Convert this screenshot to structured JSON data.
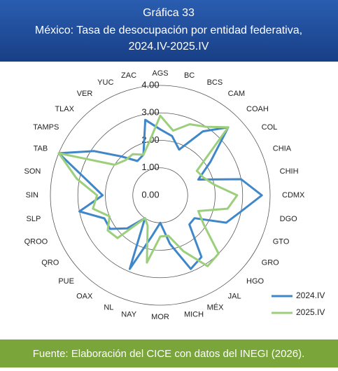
{
  "chart_data": {
    "type": "radar",
    "title": "Gráfica 33",
    "subtitle": [
      "México: Tasa de desocupación por entidad federativa,",
      "2024.IV-2025.IV"
    ],
    "source": "Fuente: Elaboración del CICE con datos del INEGI (2026).",
    "categories": [
      "AGS",
      "BC",
      "BCS",
      "CAM",
      "COAH",
      "COL",
      "CHIA",
      "CHIH",
      "CDMX",
      "DGO",
      "GTO",
      "GRO",
      "HGO",
      "JAL",
      "MÉX",
      "MICH",
      "MOR",
      "NAY",
      "NL",
      "OAX",
      "PUE",
      "QRO",
      "QROO",
      "SLP",
      "SIN",
      "SON",
      "TAB",
      "TAMPS",
      "TLAX",
      "VER",
      "YUC",
      "ZAC"
    ],
    "series": [
      {
        "name": "2024.IV",
        "color": "#3f87c9",
        "values": [
          2.4,
          2.2,
          1.8,
          2.8,
          3.5,
          2.2,
          1.5,
          3.0,
          3.7,
          3.0,
          2.6,
          1.5,
          1.5,
          2.7,
          2.9,
          1.8,
          1.0,
          1.5,
          2.9,
          1.0,
          1.7,
          2.2,
          2.2,
          3.0,
          2.1,
          2.7,
          4.0,
          2.9,
          2.0,
          1.5,
          1.6,
          2.8
        ]
      },
      {
        "name": "2025.IV",
        "color": "#9ccf7c",
        "values": [
          2.9,
          2.4,
          2.8,
          3.0,
          3.5,
          1.6,
          1.7,
          2.0,
          2.8,
          2.5,
          1.5,
          1.9,
          3.0,
          3.1,
          2.2,
          1.5,
          1.5,
          2.5,
          1.2,
          1.0,
          2.2,
          2.3,
          2.0,
          2.5,
          2.3,
          3.1,
          4.0,
          2.0,
          1.8,
          1.8,
          1.6,
          2.0
        ]
      }
    ],
    "rlim": [
      0,
      4
    ],
    "rticks": [
      {
        "value": 0,
        "label": "0.00"
      },
      {
        "value": 1,
        "label": "1.00"
      },
      {
        "value": 2,
        "label": "2.00"
      },
      {
        "value": 3,
        "label": "3.00"
      },
      {
        "value": 4,
        "label": "4.00"
      }
    ],
    "grid": true,
    "legend": "bottom-right"
  }
}
